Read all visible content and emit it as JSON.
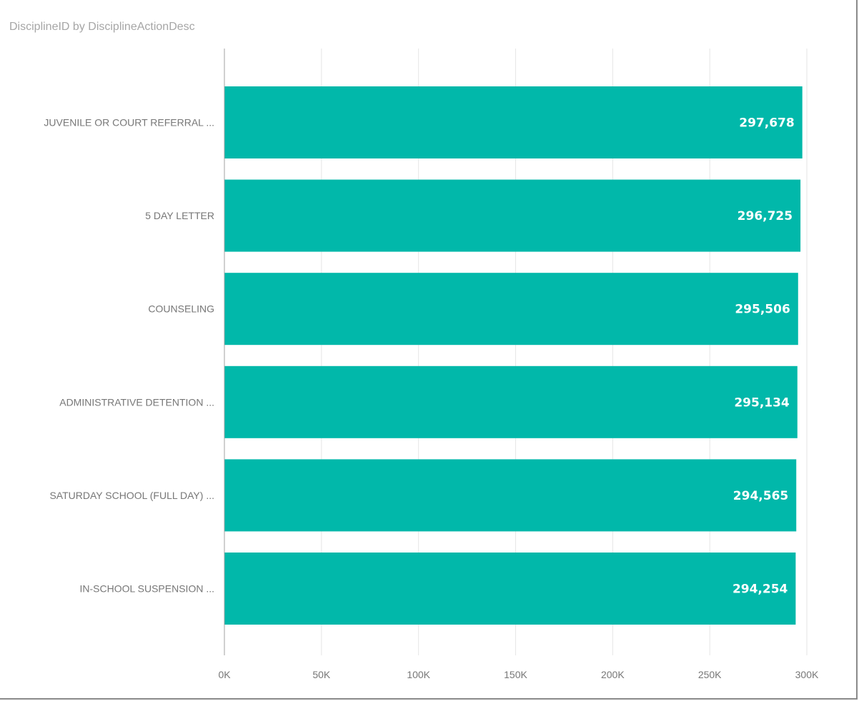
{
  "chart_data": {
    "type": "bar",
    "orientation": "horizontal",
    "title": "DisciplineID by DisciplineActionDesc",
    "categories": [
      "JUVENILE OR COURT REFERRAL ...",
      "5 DAY LETTER",
      "COUNSELING",
      "ADMINISTRATIVE DETENTION ...",
      "SATURDAY SCHOOL (FULL DAY) ...",
      "IN-SCHOOL SUSPENSION ..."
    ],
    "values": [
      297678,
      296725,
      295506,
      295134,
      294565,
      294254
    ],
    "data_labels": [
      "297,678",
      "296,725",
      "295,506",
      "295,134",
      "294,565",
      "294,254"
    ],
    "x_ticks": [
      0,
      50000,
      100000,
      150000,
      200000,
      250000,
      300000
    ],
    "x_tick_labels": [
      "0K",
      "50K",
      "100K",
      "150K",
      "200K",
      "250K",
      "300K"
    ],
    "xlim": [
      0,
      300000
    ],
    "grid": true,
    "legend": "none",
    "bar_color": "#01b8aa",
    "grid_color": "#e6e6e6"
  }
}
